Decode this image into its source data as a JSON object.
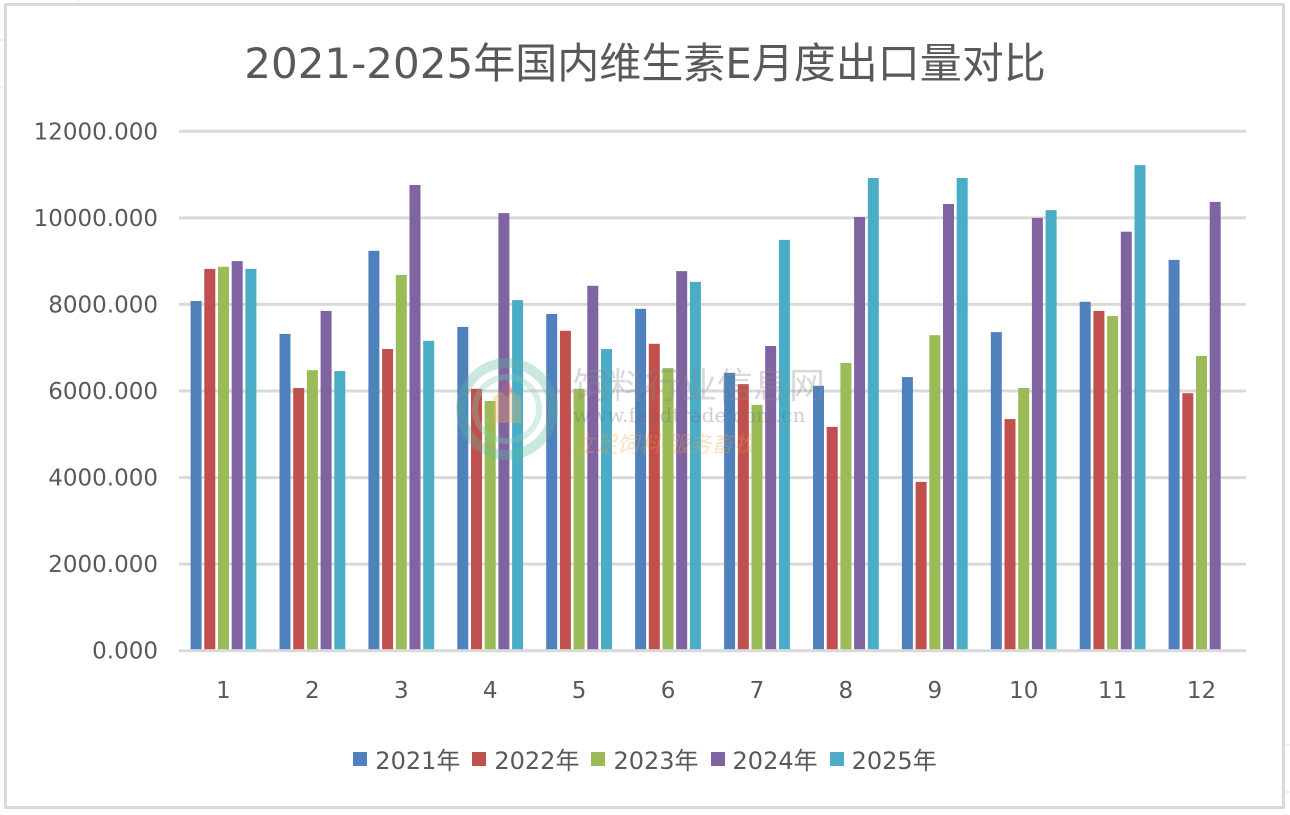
{
  "chart_data": {
    "type": "bar",
    "title": "2021-2025年国内维生素E月度出口量对比",
    "xlabel": "",
    "ylabel": "",
    "ylim": [
      0,
      12000
    ],
    "yticks": [
      "0.000",
      "2000.000",
      "4000.000",
      "6000.000",
      "8000.000",
      "10000.000",
      "12000.000"
    ],
    "ytick_values": [
      0,
      2000,
      4000,
      6000,
      8000,
      10000,
      12000
    ],
    "categories": [
      "1",
      "2",
      "3",
      "4",
      "5",
      "6",
      "7",
      "8",
      "9",
      "10",
      "11",
      "12"
    ],
    "grid": true,
    "legend_position": "bottom",
    "series": [
      {
        "name": "2021年",
        "color": "#4f81bd",
        "values": [
          8080,
          7320,
          9240,
          7480,
          7780,
          7900,
          6420,
          6120,
          6320,
          7360,
          8060,
          9030
        ]
      },
      {
        "name": "2022年",
        "color": "#c0504d",
        "values": [
          8820,
          6070,
          6970,
          6050,
          7390,
          7090,
          6160,
          5170,
          3900,
          5350,
          7850,
          5950
        ]
      },
      {
        "name": "2023年",
        "color": "#9bbb59",
        "values": [
          8870,
          6480,
          8680,
          5770,
          6050,
          6530,
          5680,
          6650,
          7290,
          6070,
          7730,
          6810
        ]
      },
      {
        "name": "2024年",
        "color": "#8064a2",
        "values": [
          9000,
          7850,
          10760,
          10110,
          8430,
          8770,
          7040,
          10020,
          10320,
          10000,
          9680,
          10370
        ]
      },
      {
        "name": "2025年",
        "color": "#4bacc6",
        "values": [
          8820,
          6460,
          7160,
          8100,
          6970,
          8520,
          9490,
          10920,
          10920,
          10180,
          11220,
          null
        ]
      }
    ]
  },
  "watermark": {
    "name": "饲料行业信息网",
    "url": "www.feedtrade.com.cn",
    "slogan": "立足饲料  服务畜牧"
  }
}
